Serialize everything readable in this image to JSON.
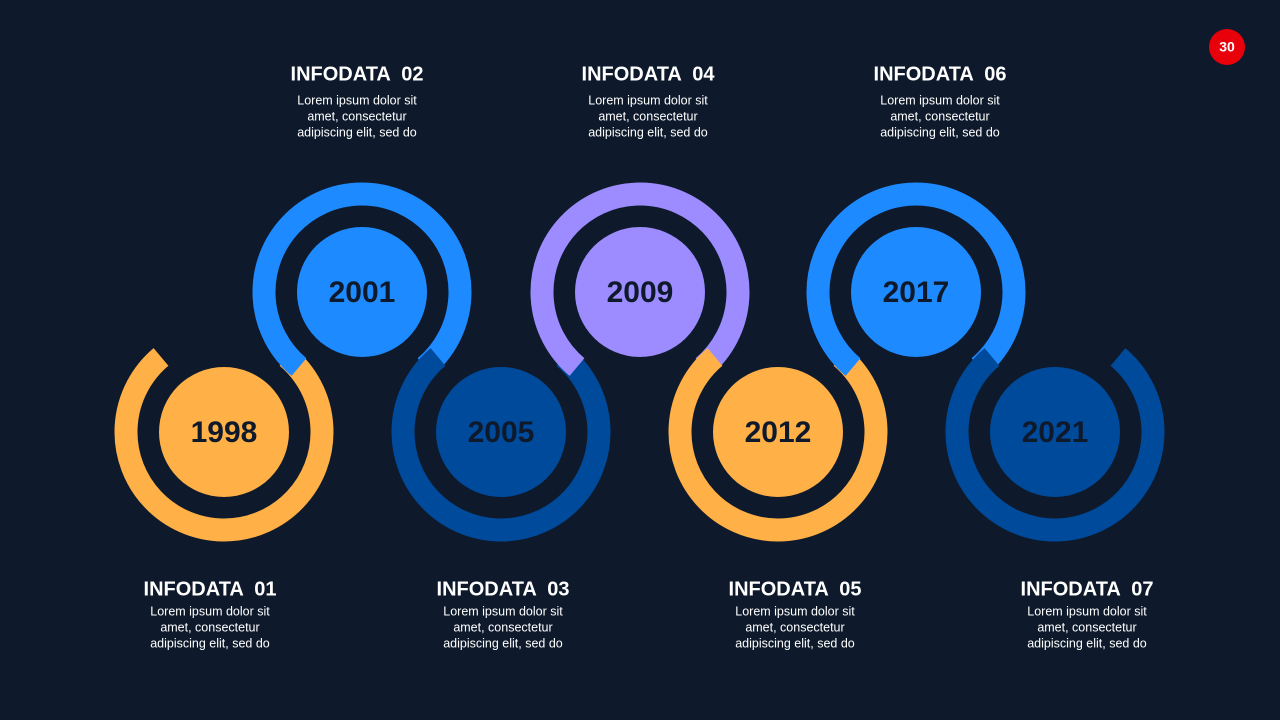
{
  "page_number": "30",
  "items": [
    {
      "year": "1998",
      "title": "INFODATA  01",
      "text": [
        "Lorem ipsum dolor sit",
        "amet, consectetur",
        "adipiscing elit, sed do"
      ]
    },
    {
      "year": "2001",
      "title": "INFODATA  02",
      "text": [
        "Lorem ipsum dolor sit",
        "amet, consectetur",
        "adipiscing elit, sed do"
      ]
    },
    {
      "year": "2005",
      "title": "INFODATA  03",
      "text": [
        "Lorem ipsum dolor sit",
        "amet, consectetur",
        "adipiscing elit, sed do"
      ]
    },
    {
      "year": "2009",
      "title": "INFODATA  04",
      "text": [
        "Lorem ipsum dolor sit",
        "amet, consectetur",
        "adipiscing elit, sed do"
      ]
    },
    {
      "year": "2012",
      "title": "INFODATA  05",
      "text": [
        "Lorem ipsum dolor sit",
        "amet, consectetur",
        "adipiscing elit, sed do"
      ]
    },
    {
      "year": "2017",
      "title": "INFODATA  06",
      "text": [
        "Lorem ipsum dolor sit",
        "amet, consectetur",
        "adipiscing elit, sed do"
      ]
    },
    {
      "year": "2021",
      "title": "INFODATA  07",
      "text": [
        "Lorem ipsum dolor sit",
        "amet, consectetur",
        "adipiscing elit, sed do"
      ]
    }
  ]
}
